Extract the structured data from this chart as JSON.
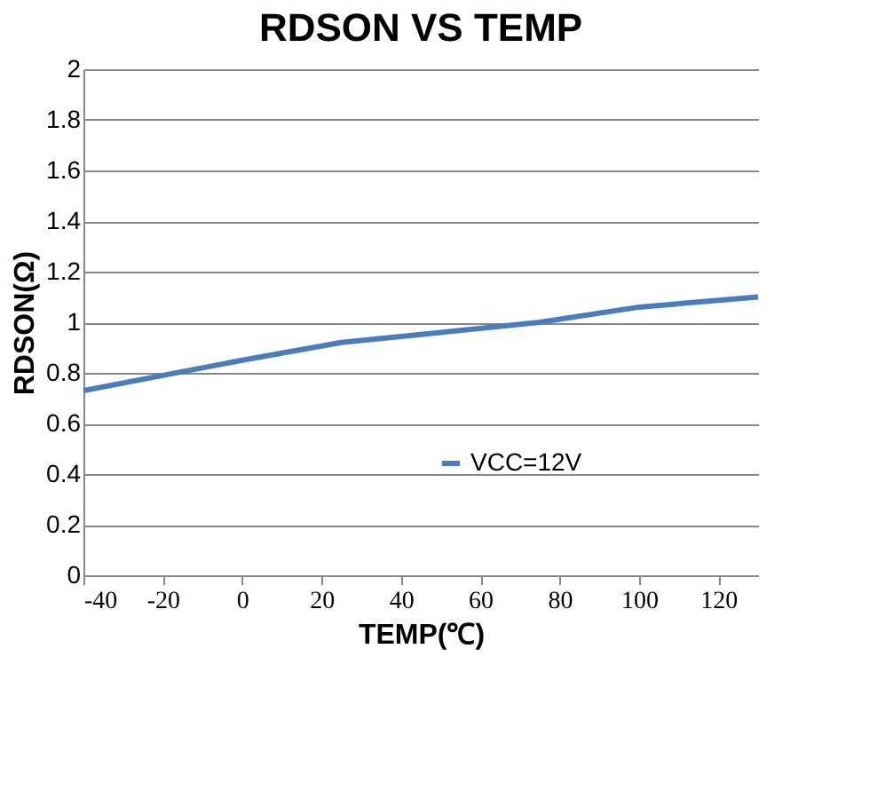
{
  "chart_data": {
    "type": "line",
    "title": "RDSON VS TEMP",
    "xlabel": "TEMP(℃)",
    "ylabel": "RDSON(Ω)",
    "x": [
      -40,
      -20,
      0,
      25,
      50,
      75,
      100,
      130
    ],
    "series": [
      {
        "name": "VCC=12V",
        "color": "#4a7ebb",
        "values": [
          0.73,
          0.79,
          0.85,
          0.92,
          0.96,
          1.0,
          1.06,
          1.1
        ]
      }
    ],
    "xlim": [
      -40,
      130
    ],
    "xticks": [
      -40,
      -20,
      0,
      20,
      40,
      60,
      80,
      100,
      120
    ],
    "ylim": [
      0,
      2
    ],
    "yticks": [
      0,
      0.2,
      0.4,
      0.6,
      0.8,
      1,
      1.2,
      1.4,
      1.6,
      1.8,
      2
    ],
    "grid": "y",
    "legend": "right",
    "marker": "none",
    "line_style": "solid"
  }
}
